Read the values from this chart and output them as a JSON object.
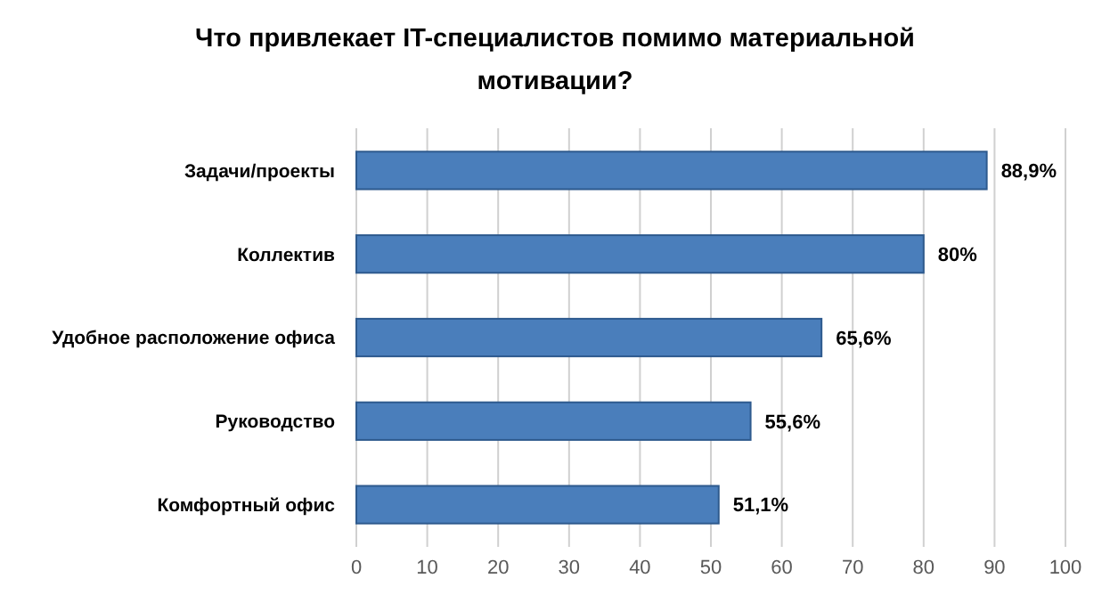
{
  "chart_data": {
    "type": "bar",
    "orientation": "horizontal",
    "title": "Что привлекает  IT-специалистов помимо материальной мотивации?",
    "categories": [
      "Задачи/проекты",
      "Коллектив",
      "Удобное расположение  офиса",
      "Руководство",
      "Комфортный  офис"
    ],
    "values": [
      88.9,
      80,
      65.6,
      55.6,
      51.1
    ],
    "value_labels": [
      "88,9%",
      "80%",
      "65,6%",
      "55,6%",
      "51,1%"
    ],
    "color": "#4a7ebb",
    "xlim": [
      0,
      100
    ],
    "xticks": [
      0,
      10,
      20,
      30,
      40,
      50,
      60,
      70,
      80,
      90,
      100
    ],
    "grid": "x"
  }
}
